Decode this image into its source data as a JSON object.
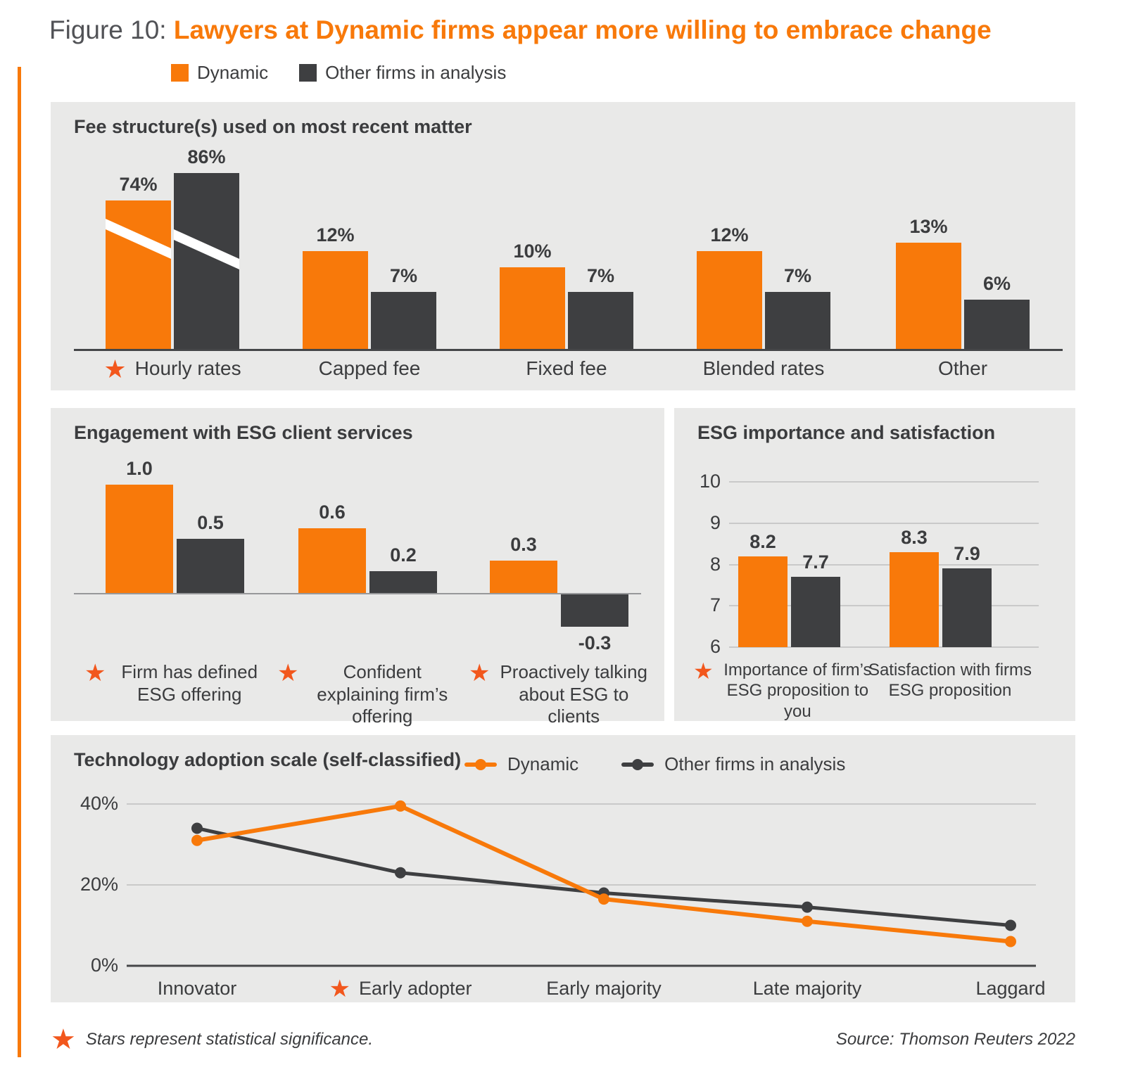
{
  "page": {
    "figure_label": "Figure 10: ",
    "figure_title": "Lawyers at Dynamic firms appear more willing to embrace change",
    "footnote": "Stars represent statistical significance.",
    "source": "Source: Thomson Reuters 2022"
  },
  "legend": {
    "dynamic": "Dynamic",
    "other": "Other firms in analysis"
  },
  "colors": {
    "orange": "#F8790A",
    "dark": "#3E3F41",
    "star": "#F2571D",
    "panel_bg": "#E9E9E8",
    "grid": "#C9C9C9",
    "axis_dark": "#454648",
    "axis_light": "#97989A",
    "text": "#3B3C3E"
  },
  "chart_data": [
    {
      "type": "bar",
      "title": "Fee structure(s) used on most recent matter",
      "categories": [
        "Hourly rates",
        "Capped fee",
        "Fixed fee",
        "Blended rates",
        "Other"
      ],
      "starred": [
        true,
        false,
        false,
        false,
        false
      ],
      "series": [
        {
          "name": "Dynamic",
          "values": [
            74,
            12,
            10,
            12,
            13
          ],
          "labels": [
            "74%",
            "12%",
            "10%",
            "12%",
            "13%"
          ]
        },
        {
          "name": "Other firms in analysis",
          "values": [
            86,
            7,
            7,
            7,
            6
          ],
          "labels": [
            "86%",
            "7%",
            "7%",
            "7%",
            "6%"
          ]
        }
      ],
      "value_suffix": "%",
      "axis_break": true,
      "axis_break_note": "Hourly rates bars are truncated with a diagonal white break"
    },
    {
      "type": "bar",
      "title": "Engagement with ESG client services",
      "categories": [
        "Firm has defined ESG offering",
        "Confident explaining firm’s offering",
        "Proactively talking about ESG to clients"
      ],
      "starred": [
        true,
        true,
        true
      ],
      "series": [
        {
          "name": "Dynamic",
          "values": [
            1.0,
            0.6,
            0.3
          ],
          "labels": [
            "1.0",
            "0.6",
            "0.3"
          ]
        },
        {
          "name": "Other firms in analysis",
          "values": [
            0.5,
            0.2,
            -0.3
          ],
          "labels": [
            "0.5",
            "0.2",
            "-0.3"
          ]
        }
      ]
    },
    {
      "type": "bar",
      "title": "ESG importance and satisfaction",
      "categories": [
        "Importance of firm’s ESG proposition to you",
        "Satisfaction with firms ESG proposition"
      ],
      "starred": [
        true,
        false
      ],
      "ylim": [
        6,
        10
      ],
      "yticks": [
        "10",
        "9",
        "8",
        "7",
        "6"
      ],
      "series": [
        {
          "name": "Dynamic",
          "values": [
            8.2,
            8.3
          ],
          "labels": [
            "8.2",
            "8.3"
          ]
        },
        {
          "name": "Other firms in analysis",
          "values": [
            7.7,
            7.9
          ],
          "labels": [
            "7.7",
            "7.9"
          ]
        }
      ]
    },
    {
      "type": "line",
      "title": "Technology adoption scale (self-classified)",
      "categories": [
        "Innovator",
        "Early adopter",
        "Early majority",
        "Late majority",
        "Laggard"
      ],
      "starred": [
        false,
        true,
        false,
        false,
        false
      ],
      "ylim": [
        0,
        45
      ],
      "yticks": [
        "40%",
        "20%",
        "0%"
      ],
      "ytick_values": [
        40,
        20,
        0
      ],
      "series": [
        {
          "name": "Dynamic",
          "values": [
            31,
            39.5,
            16.5,
            11,
            6
          ]
        },
        {
          "name": "Other firms in analysis",
          "values": [
            34,
            23,
            18,
            14.5,
            10
          ]
        }
      ]
    }
  ]
}
